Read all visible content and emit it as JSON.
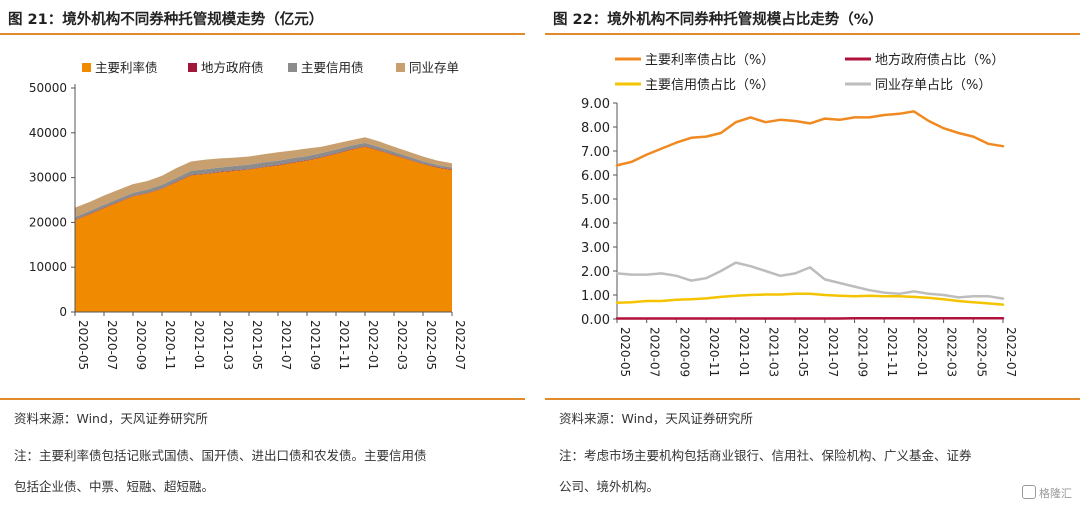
{
  "left": {
    "title": "图 21：境外机构不同券种托管规模走势（亿元）",
    "source": "资料来源：Wind，天风证券研究所",
    "note_lines": [
      "注：主要利率债包括记账式国债、国开债、进出口债和农发债。主要信用债",
      "包括企业债、中票、短融、超短融。"
    ]
  },
  "right": {
    "title": "图 22：境外机构不同券种托管规模占比走势（%）",
    "source": "资料来源：Wind，天风证券研究所",
    "note_lines": [
      "注：考虑市场主要机构包括商业银行、信用社、保险机构、广义基金、证券",
      "公司、境外机构。"
    ]
  },
  "watermark": "格隆汇",
  "chart_data": [
    {
      "type": "area",
      "stacked": true,
      "x": [
        "2020-05",
        "2020-06",
        "2020-07",
        "2020-08",
        "2020-09",
        "2020-10",
        "2020-11",
        "2020-12",
        "2021-01",
        "2021-02",
        "2021-03",
        "2021-04",
        "2021-05",
        "2021-06",
        "2021-07",
        "2021-08",
        "2021-09",
        "2021-10",
        "2021-11",
        "2021-12",
        "2022-01",
        "2022-02",
        "2022-03",
        "2022-04",
        "2022-05",
        "2022-06",
        "2022-07"
      ],
      "xticks": [
        "2020-05",
        "2020-07",
        "2020-09",
        "2020-11",
        "2021-01",
        "2021-03",
        "2021-05",
        "2021-07",
        "2021-09",
        "2021-11",
        "2022-01",
        "2022-03",
        "2022-05",
        "2022-07"
      ],
      "ylim": [
        0,
        50000
      ],
      "yticks": [
        "0",
        "10000",
        "20000",
        "30000",
        "40000",
        "50000"
      ],
      "legend_position": "top",
      "series": [
        {
          "name": "主要利率债",
          "color": "#f08a00",
          "values": [
            20500,
            21800,
            23200,
            24500,
            25800,
            26500,
            27500,
            29000,
            30500,
            30800,
            31200,
            31500,
            31800,
            32300,
            32700,
            33300,
            33800,
            34500,
            35300,
            36200,
            36900,
            36000,
            35000,
            34000,
            33000,
            32200,
            31700
          ]
        },
        {
          "name": "地方政府债",
          "color": "#a0173b",
          "values": [
            100,
            100,
            100,
            100,
            100,
            100,
            100,
            100,
            100,
            100,
            100,
            100,
            100,
            100,
            100,
            100,
            100,
            100,
            100,
            100,
            100,
            100,
            100,
            100,
            100,
            100,
            100
          ]
        },
        {
          "name": "主要信用债",
          "color": "#8c8c8c",
          "values": [
            600,
            650,
            650,
            700,
            700,
            750,
            800,
            850,
            900,
            950,
            950,
            1000,
            1000,
            1000,
            950,
            950,
            900,
            900,
            850,
            800,
            750,
            700,
            650,
            600,
            550,
            500,
            450
          ]
        },
        {
          "name": "同业存单",
          "color": "#c8a070",
          "values": [
            2100,
            2000,
            2050,
            2000,
            1950,
            1900,
            2000,
            2200,
            2100,
            2150,
            2050,
            1850,
            1800,
            1800,
            1900,
            1700,
            1700,
            1400,
            1350,
            1200,
            1250,
            1250,
            1150,
            1100,
            1050,
            1000,
            950
          ]
        }
      ]
    },
    {
      "type": "line",
      "x": [
        "2020-05",
        "2020-06",
        "2020-07",
        "2020-08",
        "2020-09",
        "2020-10",
        "2020-11",
        "2020-12",
        "2021-01",
        "2021-02",
        "2021-03",
        "2021-04",
        "2021-05",
        "2021-06",
        "2021-07",
        "2021-08",
        "2021-09",
        "2021-10",
        "2021-11",
        "2021-12",
        "2022-01",
        "2022-02",
        "2022-03",
        "2022-04",
        "2022-05",
        "2022-06",
        "2022-07"
      ],
      "xticks": [
        "2020-05",
        "2020-07",
        "2020-09",
        "2020-11",
        "2021-01",
        "2021-03",
        "2021-05",
        "2021-07",
        "2021-09",
        "2021-11",
        "2022-01",
        "2022-03",
        "2022-05",
        "2022-07"
      ],
      "ylim": [
        0,
        9
      ],
      "yticks": [
        "0.00",
        "1.00",
        "2.00",
        "3.00",
        "4.00",
        "5.00",
        "6.00",
        "7.00",
        "8.00",
        "9.00"
      ],
      "legend_position": "top",
      "series": [
        {
          "name": "主要利率债占比（%）",
          "color": "#f08a20",
          "values": [
            6.4,
            6.55,
            6.85,
            7.1,
            7.35,
            7.55,
            7.6,
            7.75,
            8.2,
            8.4,
            8.2,
            8.3,
            8.25,
            8.15,
            8.35,
            8.3,
            8.4,
            8.4,
            8.5,
            8.55,
            8.65,
            8.25,
            7.95,
            7.75,
            7.6,
            7.3,
            7.2
          ]
        },
        {
          "name": "地方政府债占比（%）",
          "color": "#b0123b",
          "values": [
            0.02,
            0.02,
            0.02,
            0.02,
            0.02,
            0.02,
            0.02,
            0.02,
            0.02,
            0.02,
            0.02,
            0.02,
            0.02,
            0.02,
            0.02,
            0.02,
            0.03,
            0.03,
            0.03,
            0.03,
            0.03,
            0.03,
            0.03,
            0.03,
            0.03,
            0.03,
            0.03
          ]
        },
        {
          "name": "主要信用债占比（%）",
          "color": "#f5c400",
          "values": [
            0.68,
            0.7,
            0.75,
            0.75,
            0.8,
            0.82,
            0.86,
            0.92,
            0.97,
            1.0,
            1.02,
            1.02,
            1.05,
            1.05,
            1.0,
            0.97,
            0.95,
            0.97,
            0.95,
            0.95,
            0.92,
            0.88,
            0.82,
            0.75,
            0.7,
            0.65,
            0.6
          ]
        },
        {
          "name": "同业存单占比（%）",
          "color": "#bdbdbd",
          "values": [
            1.9,
            1.85,
            1.85,
            1.9,
            1.8,
            1.6,
            1.7,
            2.0,
            2.35,
            2.2,
            2.0,
            1.8,
            1.9,
            2.15,
            1.65,
            1.5,
            1.35,
            1.2,
            1.1,
            1.05,
            1.15,
            1.05,
            1.0,
            0.9,
            0.95,
            0.95,
            0.85
          ]
        }
      ]
    }
  ]
}
